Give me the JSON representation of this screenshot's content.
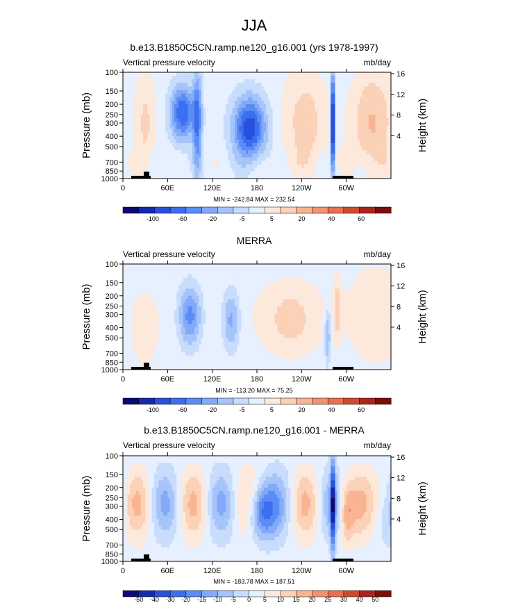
{
  "page_title": "JJA",
  "chart_data": [
    {
      "type": "heatmap",
      "title": "b.e13.B1850C5CN.ramp.ne120_g16.001 (yrs 1978-1997)",
      "left_string": "Vertical pressure velocity",
      "right_string": "mb/day",
      "ylabel": "Pressure (mb)",
      "y2label": "Height (km)",
      "y_ticks": [
        "100",
        "150",
        "200",
        "250",
        "300",
        "400",
        "500",
        "700",
        "850",
        "1000"
      ],
      "y2_ticks": [
        "16",
        "12",
        "8",
        "4"
      ],
      "x_ticks": [
        "0",
        "60E",
        "120E",
        "180",
        "120W",
        "60W"
      ],
      "stats": "MIN = -242.84   MAX = 232.54",
      "colorbar_labels": [
        "-100",
        "-60",
        "-20",
        "-5",
        "5",
        "20",
        "40",
        "60"
      ],
      "colorbar_colors": [
        "#0a0a78",
        "#1428b4",
        "#2850dc",
        "#3c6ef0",
        "#5a8cf5",
        "#82aaf8",
        "#a6c4fa",
        "#c8dcfc",
        "#e6f0fe",
        "#fde9dc",
        "#fbd1b8",
        "#f8b493",
        "#f2926e",
        "#e6704f",
        "#d04a32",
        "#a8261c",
        "#78100c"
      ]
    },
    {
      "type": "heatmap",
      "title": "MERRA",
      "left_string": "Vertical pressure velocity",
      "right_string": "mb/day",
      "ylabel": "Pressure (mb)",
      "y2label": "Height (km)",
      "y_ticks": [
        "100",
        "150",
        "200",
        "250",
        "300",
        "400",
        "500",
        "700",
        "850",
        "1000"
      ],
      "y2_ticks": [
        "16",
        "12",
        "8",
        "4"
      ],
      "x_ticks": [
        "0",
        "60E",
        "120E",
        "180",
        "120W",
        "60W"
      ],
      "stats": "MIN = -113.20   MAX =  75.25",
      "colorbar_labels": [
        "-100",
        "-60",
        "-20",
        "-5",
        "5",
        "20",
        "40",
        "60"
      ],
      "colorbar_colors": [
        "#0a0a78",
        "#1428b4",
        "#2850dc",
        "#3c6ef0",
        "#5a8cf5",
        "#82aaf8",
        "#a6c4fa",
        "#c8dcfc",
        "#e6f0fe",
        "#fde9dc",
        "#fbd1b8",
        "#f8b493",
        "#f2926e",
        "#e6704f",
        "#d04a32",
        "#a8261c",
        "#78100c"
      ]
    },
    {
      "type": "heatmap",
      "title": "b.e13.B1850C5CN.ramp.ne120_g16.001 - MERRA",
      "left_string": "Vertical pressure velocity",
      "right_string": "mb/day",
      "ylabel": "Pressure (mb)",
      "y2label": "Height (km)",
      "y_ticks": [
        "100",
        "150",
        "200",
        "250",
        "300",
        "400",
        "500",
        "700",
        "850",
        "1000"
      ],
      "y2_ticks": [
        "16",
        "12",
        "8",
        "4"
      ],
      "x_ticks": [
        "0",
        "60E",
        "120E",
        "180",
        "120W",
        "60W"
      ],
      "stats": "MIN = -183.78   MAX = 187.51",
      "colorbar_labels": [
        "-50",
        "-40",
        "-30",
        "-20",
        "-15",
        "-10",
        "-5",
        "0",
        "5",
        "10",
        "15",
        "20",
        "25",
        "30",
        "40",
        "50"
      ],
      "colorbar_colors": [
        "#0a0a78",
        "#1428b4",
        "#2850dc",
        "#3c6ef0",
        "#5a8cf5",
        "#82aaf8",
        "#a6c4fa",
        "#c8dcfc",
        "#e6f0fe",
        "#fde9dc",
        "#fbd1b8",
        "#f8b493",
        "#f2926e",
        "#e6704f",
        "#d04a32",
        "#a8261c",
        "#78100c"
      ]
    }
  ]
}
